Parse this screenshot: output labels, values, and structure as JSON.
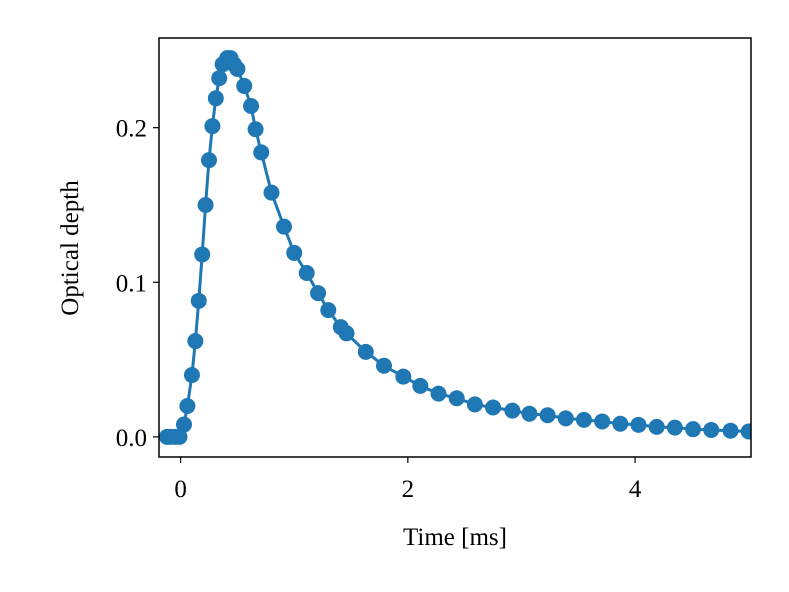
{
  "chart_data": {
    "type": "line",
    "x_label": "Time [ms]",
    "y_label": "Optical depth",
    "markers": true,
    "grid": false,
    "xlim": [
      -0.19,
      5.02
    ],
    "ylim": [
      -0.013,
      0.258
    ],
    "xticks": [
      0,
      2,
      4
    ],
    "yticks": [
      {
        "value": 0,
        "label": "0.0"
      },
      0.1,
      0.2
    ],
    "series": [
      {
        "color": "#1f77b4",
        "x": [
          -0.12,
          -0.09,
          -0.05,
          -0.01,
          0.03,
          0.06,
          0.1,
          0.13,
          0.16,
          0.19,
          0.22,
          0.25,
          0.28,
          0.31,
          0.34,
          0.37,
          0.41,
          0.44,
          0.47,
          0.5,
          0.56,
          0.62,
          0.66,
          0.71,
          0.8,
          0.91,
          1.0,
          1.11,
          1.21,
          1.3,
          1.41,
          1.46,
          1.63,
          1.79,
          1.96,
          2.11,
          2.27,
          2.43,
          2.59,
          2.75,
          2.92,
          3.07,
          3.23,
          3.39,
          3.55,
          3.71,
          3.87,
          4.03,
          4.19,
          4.35,
          4.51,
          4.67,
          4.84,
          5.0
        ],
        "values": [
          0,
          0,
          0,
          0,
          0.008,
          0.02,
          0.04,
          0.062,
          0.088,
          0.118,
          0.15,
          0.179,
          0.201,
          0.219,
          0.232,
          0.241,
          0.245,
          0.245,
          0.241,
          0.238,
          0.227,
          0.214,
          0.199,
          0.184,
          0.158,
          0.136,
          0.119,
          0.106,
          0.093,
          0.082,
          0.071,
          0.067,
          0.055,
          0.046,
          0.039,
          0.033,
          0.028,
          0.025,
          0.021,
          0.019,
          0.017,
          0.015,
          0.014,
          0.012,
          0.011,
          0.01,
          0.0085,
          0.0078,
          0.0065,
          0.006,
          0.005,
          0.0045,
          0.004,
          0.0035
        ]
      }
    ]
  }
}
